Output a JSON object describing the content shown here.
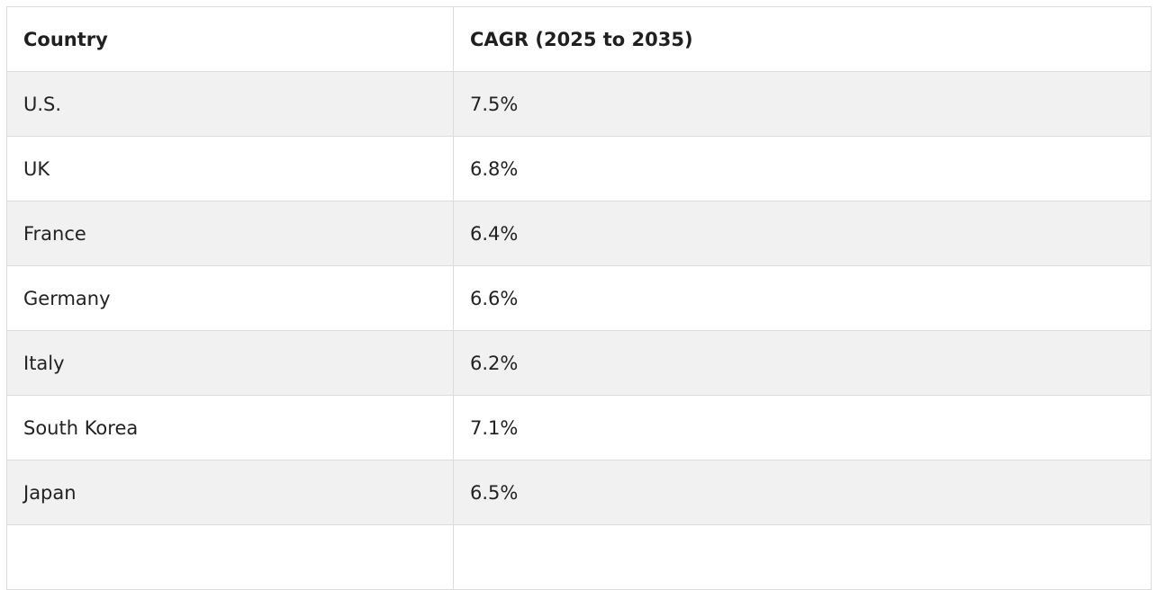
{
  "table": {
    "headers": [
      "Country",
      "CAGR (2025 to 2035)"
    ],
    "rows": [
      [
        "U.S.",
        "7.5%"
      ],
      [
        "UK",
        "6.8%"
      ],
      [
        "France",
        "6.4%"
      ],
      [
        "Germany",
        "6.6%"
      ],
      [
        "Italy",
        "6.2%"
      ],
      [
        "South Korea",
        "7.1%"
      ],
      [
        "Japan",
        "6.5%"
      ],
      [
        "",
        ""
      ]
    ]
  }
}
